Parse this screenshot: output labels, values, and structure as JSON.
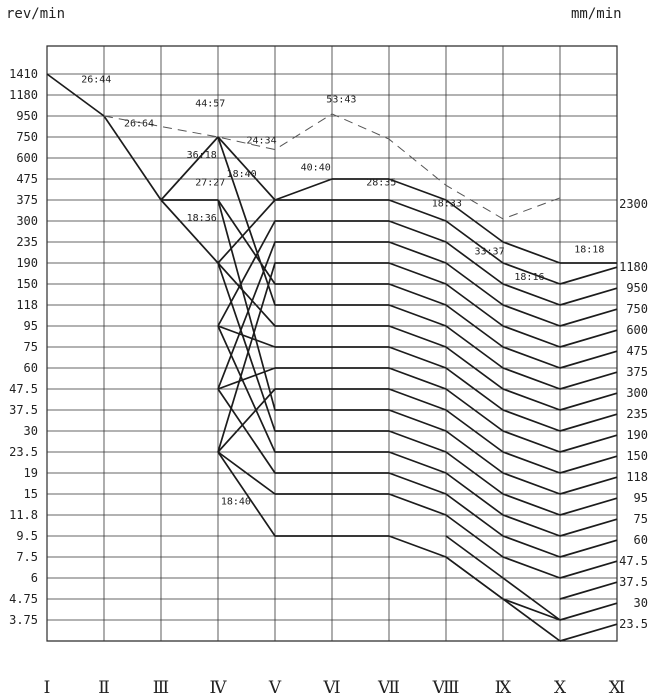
{
  "chart_data": {
    "type": "line",
    "title": "",
    "ylabel_left": "rev/min",
    "ylabel_right": "mm/min",
    "x_categories": [
      "I",
      "II",
      "III",
      "IV",
      "V",
      "VI",
      "VII",
      "VIII",
      "IX",
      "X",
      "XI"
    ],
    "x_labels_display": [
      "Ⅰ",
      "Ⅱ",
      "Ⅲ",
      "Ⅳ",
      "Ⅴ",
      "Ⅵ",
      "Ⅶ",
      "Ⅷ",
      "Ⅸ",
      "Ⅹ",
      "Ⅺ"
    ],
    "y_levels_left": [
      "1410",
      "1180",
      "950",
      "750",
      "600",
      "475",
      "375",
      "300",
      "235",
      "190",
      "150",
      "118",
      "95",
      "75",
      "60",
      "47.5",
      "37.5",
      "30",
      "23.5",
      "19",
      "15",
      "11.8",
      "9.5",
      "7.5",
      "6",
      "4.75",
      "3.75"
    ],
    "y_levels_right": [
      "2300",
      "1180",
      "950",
      "750",
      "600",
      "475",
      "375",
      "300",
      "235",
      "190",
      "150",
      "118",
      "95",
      "75",
      "60",
      "47.5",
      "37.5",
      "30",
      "23.5"
    ],
    "right_label_levels": [
      6.2,
      9.2,
      10.2,
      11.2,
      12.2,
      13.2,
      14.2,
      15.2,
      16.2,
      17.2,
      18.2,
      19.2,
      20.2,
      21.2,
      22.2,
      23.2,
      24.2,
      25.2,
      26.2
    ],
    "grid": true,
    "segment_labels": [
      {
        "text": "26:44",
        "x": 0.6,
        "level": 0.4
      },
      {
        "text": "26:64",
        "x": 1.35,
        "level": 2.5
      },
      {
        "text": "36:18",
        "x": 2.45,
        "level": 4.0
      },
      {
        "text": "27:27",
        "x": 2.6,
        "level": 5.3
      },
      {
        "text": "18:36",
        "x": 2.45,
        "level": 7.0
      },
      {
        "text": "44:57",
        "x": 2.6,
        "level": 1.55
      },
      {
        "text": "24:34",
        "x": 3.5,
        "level": 3.3
      },
      {
        "text": "18:40",
        "x": 3.15,
        "level": 4.9
      },
      {
        "text": "40:40",
        "x": 4.45,
        "level": 4.6
      },
      {
        "text": "53:43",
        "x": 4.9,
        "level": 1.35
      },
      {
        "text": "28:35",
        "x": 5.6,
        "level": 5.3
      },
      {
        "text": "18:33",
        "x": 6.75,
        "level": 6.3
      },
      {
        "text": "33:37",
        "x": 7.5,
        "level": 8.6
      },
      {
        "text": "18:16",
        "x": 8.2,
        "level": 9.8
      },
      {
        "text": "18:18",
        "x": 9.25,
        "level": 8.5
      },
      {
        "text": "18:40",
        "x": 3.05,
        "level": 20.5
      }
    ],
    "series": [
      {
        "style": "solid",
        "points": [
          [
            0,
            0
          ],
          [
            1,
            2
          ]
        ]
      },
      {
        "style": "solid",
        "points": [
          [
            1,
            2
          ],
          [
            2,
            6
          ]
        ]
      },
      {
        "style": "solid",
        "points": [
          [
            2,
            6
          ],
          [
            3,
            3
          ]
        ]
      },
      {
        "style": "solid",
        "points": [
          [
            2,
            6
          ],
          [
            3,
            6
          ]
        ]
      },
      {
        "style": "solid",
        "points": [
          [
            2,
            6
          ],
          [
            3,
            9
          ]
        ]
      },
      {
        "style": "dashed",
        "points": [
          [
            1,
            2
          ],
          [
            3,
            3
          ],
          [
            4,
            3.6
          ],
          [
            5,
            1.9
          ],
          [
            6,
            3.1
          ],
          [
            7,
            5.3
          ],
          [
            8,
            6.9
          ],
          [
            9,
            5.9
          ]
        ]
      },
      {
        "style": "solid",
        "points": [
          [
            3,
            3
          ],
          [
            4,
            6
          ],
          [
            5,
            5
          ],
          [
            6,
            5
          ],
          [
            7,
            6
          ],
          [
            8,
            8
          ],
          [
            9,
            9
          ]
        ]
      },
      {
        "style": "solid",
        "points": [
          [
            3,
            9
          ],
          [
            4,
            6
          ],
          [
            5,
            6
          ],
          [
            6,
            6
          ],
          [
            7,
            7
          ],
          [
            8,
            9
          ],
          [
            9,
            10
          ]
        ]
      },
      {
        "style": "solid",
        "points": [
          [
            3,
            12
          ],
          [
            4,
            7
          ],
          [
            5,
            7
          ],
          [
            6,
            7
          ],
          [
            7,
            8
          ],
          [
            8,
            10
          ],
          [
            9,
            11
          ]
        ]
      },
      {
        "style": "solid",
        "points": [
          [
            3,
            15
          ],
          [
            4,
            8
          ],
          [
            5,
            8
          ],
          [
            6,
            8
          ],
          [
            7,
            9
          ],
          [
            8,
            11
          ],
          [
            9,
            12
          ]
        ]
      },
      {
        "style": "solid",
        "points": [
          [
            3,
            18
          ],
          [
            4,
            9
          ],
          [
            5,
            9
          ],
          [
            6,
            9
          ],
          [
            7,
            10
          ],
          [
            8,
            12
          ],
          [
            9,
            13
          ]
        ]
      },
      {
        "style": "solid",
        "points": [
          [
            3,
            6
          ],
          [
            4,
            10
          ],
          [
            5,
            10
          ],
          [
            6,
            10
          ],
          [
            7,
            11
          ],
          [
            8,
            13
          ],
          [
            9,
            14
          ]
        ]
      },
      {
        "style": "solid",
        "points": [
          [
            3,
            3
          ],
          [
            4,
            11
          ],
          [
            5,
            11
          ],
          [
            6,
            11
          ],
          [
            7,
            12
          ],
          [
            8,
            14
          ],
          [
            9,
            15
          ]
        ]
      },
      {
        "style": "solid",
        "points": [
          [
            3,
            9
          ],
          [
            4,
            12
          ],
          [
            5,
            12
          ],
          [
            6,
            12
          ],
          [
            7,
            13
          ],
          [
            8,
            15
          ],
          [
            9,
            16
          ]
        ]
      },
      {
        "style": "solid",
        "points": [
          [
            3,
            12
          ],
          [
            4,
            13
          ],
          [
            5,
            13
          ],
          [
            6,
            13
          ],
          [
            7,
            14
          ],
          [
            8,
            16
          ],
          [
            9,
            17
          ]
        ]
      },
      {
        "style": "solid",
        "points": [
          [
            3,
            15
          ],
          [
            4,
            14
          ],
          [
            5,
            14
          ],
          [
            6,
            14
          ],
          [
            7,
            15
          ],
          [
            8,
            17
          ],
          [
            9,
            18
          ]
        ]
      },
      {
        "style": "solid",
        "points": [
          [
            3,
            18
          ],
          [
            4,
            15
          ],
          [
            5,
            15
          ],
          [
            6,
            15
          ],
          [
            7,
            16
          ],
          [
            8,
            18
          ],
          [
            9,
            19
          ]
        ]
      },
      {
        "style": "solid",
        "points": [
          [
            3,
            6
          ],
          [
            4,
            16
          ],
          [
            5,
            16
          ],
          [
            6,
            16
          ],
          [
            7,
            17
          ],
          [
            8,
            19
          ],
          [
            9,
            20
          ]
        ]
      },
      {
        "style": "solid",
        "points": [
          [
            3,
            9
          ],
          [
            4,
            17
          ],
          [
            5,
            17
          ],
          [
            6,
            17
          ],
          [
            7,
            18
          ],
          [
            8,
            20
          ],
          [
            9,
            21
          ]
        ]
      },
      {
        "style": "solid",
        "points": [
          [
            3,
            12
          ],
          [
            4,
            18
          ],
          [
            5,
            18
          ],
          [
            6,
            18
          ],
          [
            7,
            19
          ],
          [
            8,
            21
          ],
          [
            9,
            22
          ]
        ]
      },
      {
        "style": "solid",
        "points": [
          [
            3,
            15
          ],
          [
            4,
            19
          ],
          [
            5,
            19
          ],
          [
            6,
            19
          ],
          [
            7,
            20
          ],
          [
            8,
            22
          ],
          [
            9,
            23
          ]
        ]
      },
      {
        "style": "solid",
        "points": [
          [
            3,
            18
          ],
          [
            4,
            20
          ],
          [
            5,
            20
          ],
          [
            6,
            20
          ],
          [
            7,
            21
          ],
          [
            8,
            23
          ],
          [
            9,
            24
          ]
        ]
      },
      {
        "style": "solid",
        "points": [
          [
            3,
            18
          ],
          [
            4,
            22
          ],
          [
            5,
            22
          ],
          [
            6,
            22
          ],
          [
            7,
            23
          ],
          [
            8,
            25
          ],
          [
            9,
            26
          ]
        ]
      },
      {
        "style": "solid",
        "points": [
          [
            9,
            9
          ],
          [
            10,
            9
          ]
        ]
      },
      {
        "style": "solid",
        "points": [
          [
            9,
            10
          ],
          [
            10,
            9.2
          ]
        ]
      },
      {
        "style": "solid",
        "points": [
          [
            9,
            11
          ],
          [
            10,
            10.2
          ]
        ]
      },
      {
        "style": "solid",
        "points": [
          [
            9,
            12
          ],
          [
            10,
            11.2
          ]
        ]
      },
      {
        "style": "solid",
        "points": [
          [
            9,
            13
          ],
          [
            10,
            12.2
          ]
        ]
      },
      {
        "style": "solid",
        "points": [
          [
            9,
            14
          ],
          [
            10,
            13.2
          ]
        ]
      },
      {
        "style": "solid",
        "points": [
          [
            9,
            15
          ],
          [
            10,
            14.2
          ]
        ]
      },
      {
        "style": "solid",
        "points": [
          [
            9,
            16
          ],
          [
            10,
            15.2
          ]
        ]
      },
      {
        "style": "solid",
        "points": [
          [
            9,
            17
          ],
          [
            10,
            16.2
          ]
        ]
      },
      {
        "style": "solid",
        "points": [
          [
            9,
            18
          ],
          [
            10,
            17.2
          ]
        ]
      },
      {
        "style": "solid",
        "points": [
          [
            9,
            19
          ],
          [
            10,
            18.2
          ]
        ]
      },
      {
        "style": "solid",
        "points": [
          [
            9,
            20
          ],
          [
            10,
            19.2
          ]
        ]
      },
      {
        "style": "solid",
        "points": [
          [
            9,
            21
          ],
          [
            10,
            20.2
          ]
        ]
      },
      {
        "style": "solid",
        "points": [
          [
            9,
            22
          ],
          [
            10,
            21.2
          ]
        ]
      },
      {
        "style": "solid",
        "points": [
          [
            9,
            23
          ],
          [
            10,
            22.2
          ]
        ]
      },
      {
        "style": "solid",
        "points": [
          [
            9,
            24
          ],
          [
            10,
            23.2
          ]
        ]
      },
      {
        "style": "solid",
        "points": [
          [
            9,
            25
          ],
          [
            10,
            24.2
          ]
        ]
      },
      {
        "style": "solid",
        "points": [
          [
            9,
            26
          ],
          [
            10,
            25.2
          ]
        ]
      },
      {
        "style": "solid",
        "points": [
          [
            9,
            27
          ],
          [
            10,
            26.2
          ]
        ]
      },
      {
        "style": "solid",
        "points": [
          [
            8,
            24
          ],
          [
            9,
            26
          ]
        ]
      },
      {
        "style": "solid",
        "points": [
          [
            8,
            25
          ],
          [
            9,
            27
          ]
        ]
      },
      {
        "style": "solid",
        "points": [
          [
            7,
            22
          ],
          [
            8,
            24
          ]
        ]
      },
      {
        "style": "solid",
        "points": [
          [
            7,
            23
          ],
          [
            8,
            25
          ]
        ]
      }
    ]
  }
}
